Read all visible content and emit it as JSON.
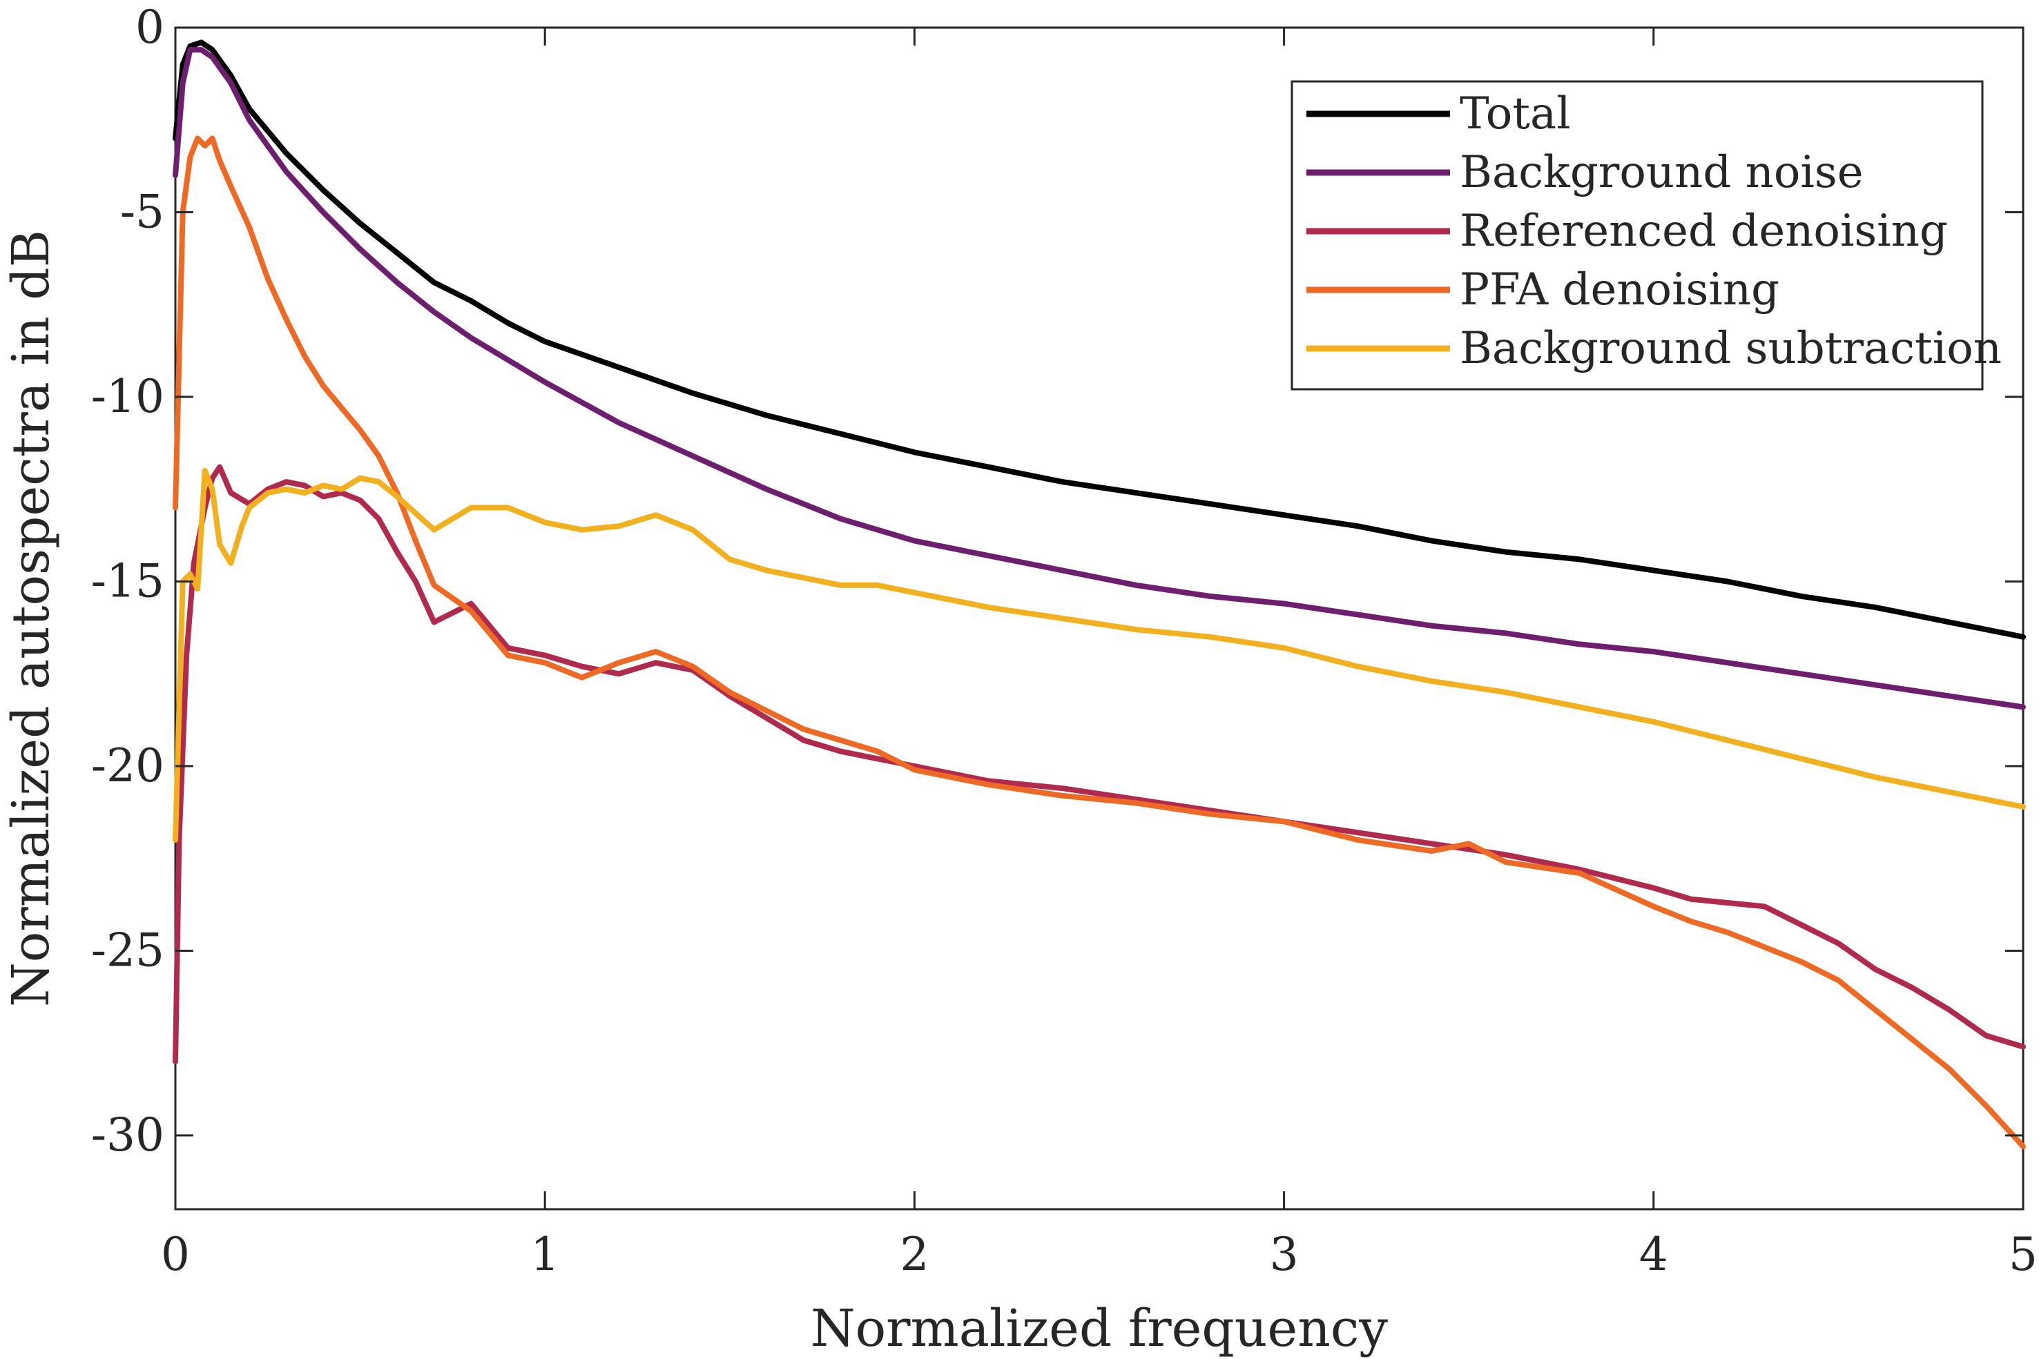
{
  "chart_data": {
    "type": "line",
    "xlabel": "Normalized frequency",
    "ylabel": "Normalized autospectra in dB",
    "xlim": [
      0,
      5
    ],
    "ylim": [
      -32,
      0
    ],
    "xticks": [
      0,
      1,
      2,
      3,
      4,
      5
    ],
    "yticks": [
      0,
      -5,
      -10,
      -15,
      -20,
      -25,
      -30
    ],
    "xtick_labels": [
      "0",
      "1",
      "2",
      "3",
      "4",
      "5"
    ],
    "ytick_labels": [
      "0",
      "-5",
      "-10",
      "-15",
      "-20",
      "-25",
      "-30"
    ],
    "grid": false,
    "legend_position": "top-right",
    "series": [
      {
        "name": "Total",
        "color": "#000000",
        "points": [
          [
            0.0,
            -3.0
          ],
          [
            0.02,
            -1.0
          ],
          [
            0.04,
            -0.5
          ],
          [
            0.07,
            -0.4
          ],
          [
            0.1,
            -0.6
          ],
          [
            0.15,
            -1.3
          ],
          [
            0.2,
            -2.2
          ],
          [
            0.3,
            -3.4
          ],
          [
            0.4,
            -4.4
          ],
          [
            0.5,
            -5.3
          ],
          [
            0.6,
            -6.1
          ],
          [
            0.7,
            -6.9
          ],
          [
            0.8,
            -7.4
          ],
          [
            0.9,
            -8.0
          ],
          [
            1.0,
            -8.5
          ],
          [
            1.2,
            -9.2
          ],
          [
            1.4,
            -9.9
          ],
          [
            1.6,
            -10.5
          ],
          [
            1.8,
            -11.0
          ],
          [
            2.0,
            -11.5
          ],
          [
            2.2,
            -11.9
          ],
          [
            2.4,
            -12.3
          ],
          [
            2.6,
            -12.6
          ],
          [
            2.8,
            -12.9
          ],
          [
            3.0,
            -13.2
          ],
          [
            3.2,
            -13.5
          ],
          [
            3.4,
            -13.9
          ],
          [
            3.6,
            -14.2
          ],
          [
            3.8,
            -14.4
          ],
          [
            4.0,
            -14.7
          ],
          [
            4.2,
            -15.0
          ],
          [
            4.4,
            -15.4
          ],
          [
            4.6,
            -15.7
          ],
          [
            4.8,
            -16.1
          ],
          [
            5.0,
            -16.5
          ]
        ]
      },
      {
        "name": "Background noise",
        "color": "#6e1e6e",
        "points": [
          [
            0.0,
            -4.0
          ],
          [
            0.02,
            -1.5
          ],
          [
            0.04,
            -0.6
          ],
          [
            0.07,
            -0.6
          ],
          [
            0.1,
            -0.8
          ],
          [
            0.15,
            -1.5
          ],
          [
            0.2,
            -2.5
          ],
          [
            0.3,
            -3.9
          ],
          [
            0.4,
            -5.0
          ],
          [
            0.5,
            -6.0
          ],
          [
            0.6,
            -6.9
          ],
          [
            0.7,
            -7.7
          ],
          [
            0.8,
            -8.4
          ],
          [
            0.9,
            -9.0
          ],
          [
            1.0,
            -9.6
          ],
          [
            1.2,
            -10.7
          ],
          [
            1.4,
            -11.6
          ],
          [
            1.6,
            -12.5
          ],
          [
            1.8,
            -13.3
          ],
          [
            2.0,
            -13.9
          ],
          [
            2.2,
            -14.3
          ],
          [
            2.4,
            -14.7
          ],
          [
            2.6,
            -15.1
          ],
          [
            2.8,
            -15.4
          ],
          [
            3.0,
            -15.6
          ],
          [
            3.2,
            -15.9
          ],
          [
            3.4,
            -16.2
          ],
          [
            3.6,
            -16.4
          ],
          [
            3.8,
            -16.7
          ],
          [
            4.0,
            -16.9
          ],
          [
            4.2,
            -17.2
          ],
          [
            4.4,
            -17.5
          ],
          [
            4.6,
            -17.8
          ],
          [
            4.8,
            -18.1
          ],
          [
            5.0,
            -18.4
          ]
        ]
      },
      {
        "name": "Referenced denoising",
        "color": "#b02a4e",
        "points": [
          [
            0.0,
            -28.0
          ],
          [
            0.01,
            -22.0
          ],
          [
            0.03,
            -17.0
          ],
          [
            0.05,
            -14.5
          ],
          [
            0.08,
            -13.0
          ],
          [
            0.1,
            -12.2
          ],
          [
            0.12,
            -11.9
          ],
          [
            0.15,
            -12.6
          ],
          [
            0.2,
            -12.9
          ],
          [
            0.25,
            -12.5
          ],
          [
            0.3,
            -12.3
          ],
          [
            0.35,
            -12.4
          ],
          [
            0.4,
            -12.7
          ],
          [
            0.45,
            -12.6
          ],
          [
            0.5,
            -12.8
          ],
          [
            0.55,
            -13.3
          ],
          [
            0.6,
            -14.2
          ],
          [
            0.65,
            -15.0
          ],
          [
            0.7,
            -16.1
          ],
          [
            0.8,
            -15.6
          ],
          [
            0.9,
            -16.8
          ],
          [
            1.0,
            -17.0
          ],
          [
            1.1,
            -17.3
          ],
          [
            1.2,
            -17.5
          ],
          [
            1.3,
            -17.2
          ],
          [
            1.4,
            -17.4
          ],
          [
            1.5,
            -18.1
          ],
          [
            1.6,
            -18.7
          ],
          [
            1.7,
            -19.3
          ],
          [
            1.8,
            -19.6
          ],
          [
            1.9,
            -19.8
          ],
          [
            2.0,
            -20.0
          ],
          [
            2.2,
            -20.4
          ],
          [
            2.4,
            -20.6
          ],
          [
            2.6,
            -20.9
          ],
          [
            2.8,
            -21.2
          ],
          [
            3.0,
            -21.5
          ],
          [
            3.2,
            -21.8
          ],
          [
            3.4,
            -22.1
          ],
          [
            3.6,
            -22.4
          ],
          [
            3.8,
            -22.8
          ],
          [
            4.0,
            -23.3
          ],
          [
            4.1,
            -23.6
          ],
          [
            4.2,
            -23.7
          ],
          [
            4.3,
            -23.8
          ],
          [
            4.4,
            -24.3
          ],
          [
            4.5,
            -24.8
          ],
          [
            4.6,
            -25.5
          ],
          [
            4.7,
            -26.0
          ],
          [
            4.8,
            -26.6
          ],
          [
            4.9,
            -27.3
          ],
          [
            5.0,
            -27.6
          ]
        ]
      },
      {
        "name": "PFA denoising",
        "color": "#ee6a24",
        "points": [
          [
            0.0,
            -13.0
          ],
          [
            0.02,
            -5.0
          ],
          [
            0.04,
            -3.5
          ],
          [
            0.06,
            -3.0
          ],
          [
            0.08,
            -3.2
          ],
          [
            0.1,
            -3.0
          ],
          [
            0.12,
            -3.6
          ],
          [
            0.15,
            -4.3
          ],
          [
            0.2,
            -5.4
          ],
          [
            0.25,
            -6.8
          ],
          [
            0.3,
            -7.9
          ],
          [
            0.35,
            -8.9
          ],
          [
            0.4,
            -9.7
          ],
          [
            0.45,
            -10.3
          ],
          [
            0.5,
            -10.9
          ],
          [
            0.55,
            -11.6
          ],
          [
            0.6,
            -12.6
          ],
          [
            0.65,
            -13.9
          ],
          [
            0.7,
            -15.1
          ],
          [
            0.8,
            -15.8
          ],
          [
            0.9,
            -17.0
          ],
          [
            1.0,
            -17.2
          ],
          [
            1.1,
            -17.6
          ],
          [
            1.2,
            -17.2
          ],
          [
            1.3,
            -16.9
          ],
          [
            1.4,
            -17.3
          ],
          [
            1.5,
            -18.0
          ],
          [
            1.6,
            -18.5
          ],
          [
            1.7,
            -19.0
          ],
          [
            1.8,
            -19.3
          ],
          [
            1.9,
            -19.6
          ],
          [
            2.0,
            -20.1
          ],
          [
            2.2,
            -20.5
          ],
          [
            2.4,
            -20.8
          ],
          [
            2.6,
            -21.0
          ],
          [
            2.8,
            -21.3
          ],
          [
            3.0,
            -21.5
          ],
          [
            3.2,
            -22.0
          ],
          [
            3.4,
            -22.3
          ],
          [
            3.5,
            -22.1
          ],
          [
            3.6,
            -22.6
          ],
          [
            3.8,
            -22.9
          ],
          [
            4.0,
            -23.8
          ],
          [
            4.1,
            -24.2
          ],
          [
            4.2,
            -24.5
          ],
          [
            4.3,
            -24.9
          ],
          [
            4.4,
            -25.3
          ],
          [
            4.5,
            -25.8
          ],
          [
            4.6,
            -26.6
          ],
          [
            4.7,
            -27.4
          ],
          [
            4.8,
            -28.2
          ],
          [
            4.9,
            -29.2
          ],
          [
            5.0,
            -30.3
          ]
        ]
      },
      {
        "name": "Background subtraction",
        "color": "#f2b01e",
        "points": [
          [
            0.0,
            -22.0
          ],
          [
            0.02,
            -15.0
          ],
          [
            0.04,
            -14.8
          ],
          [
            0.06,
            -15.2
          ],
          [
            0.08,
            -12.0
          ],
          [
            0.1,
            -12.5
          ],
          [
            0.12,
            -14.0
          ],
          [
            0.15,
            -14.5
          ],
          [
            0.18,
            -13.5
          ],
          [
            0.2,
            -13.0
          ],
          [
            0.25,
            -12.6
          ],
          [
            0.3,
            -12.5
          ],
          [
            0.35,
            -12.6
          ],
          [
            0.4,
            -12.4
          ],
          [
            0.45,
            -12.5
          ],
          [
            0.5,
            -12.2
          ],
          [
            0.55,
            -12.3
          ],
          [
            0.6,
            -12.7
          ],
          [
            0.7,
            -13.6
          ],
          [
            0.8,
            -13.0
          ],
          [
            0.9,
            -13.0
          ],
          [
            1.0,
            -13.4
          ],
          [
            1.1,
            -13.6
          ],
          [
            1.2,
            -13.5
          ],
          [
            1.3,
            -13.2
          ],
          [
            1.4,
            -13.6
          ],
          [
            1.5,
            -14.4
          ],
          [
            1.6,
            -14.7
          ],
          [
            1.7,
            -14.9
          ],
          [
            1.8,
            -15.1
          ],
          [
            1.9,
            -15.1
          ],
          [
            2.0,
            -15.3
          ],
          [
            2.2,
            -15.7
          ],
          [
            2.4,
            -16.0
          ],
          [
            2.6,
            -16.3
          ],
          [
            2.8,
            -16.5
          ],
          [
            3.0,
            -16.8
          ],
          [
            3.2,
            -17.3
          ],
          [
            3.4,
            -17.7
          ],
          [
            3.6,
            -18.0
          ],
          [
            3.8,
            -18.4
          ],
          [
            4.0,
            -18.8
          ],
          [
            4.2,
            -19.3
          ],
          [
            4.4,
            -19.8
          ],
          [
            4.6,
            -20.3
          ],
          [
            4.8,
            -20.7
          ],
          [
            5.0,
            -21.1
          ]
        ]
      }
    ]
  }
}
